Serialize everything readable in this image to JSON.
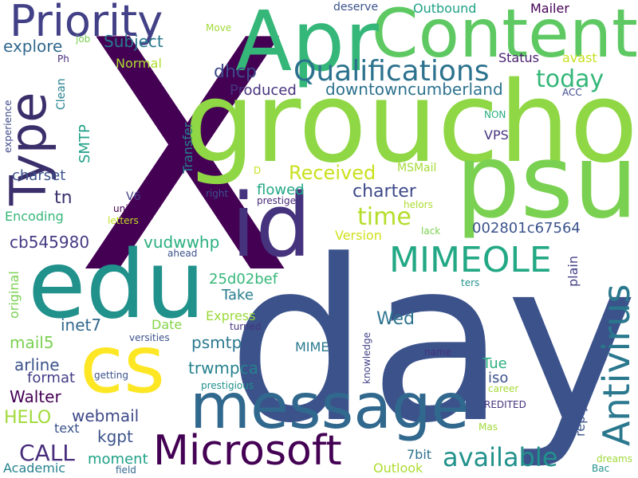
{
  "word_cloud": {
    "words": [
      {
        "text": "X",
        "color": "#440154"
      },
      {
        "text": "day",
        "color": "#3b528b"
      },
      {
        "text": "groucho",
        "color": "#8fd744"
      },
      {
        "text": "psu",
        "color": "#7ad151"
      },
      {
        "text": "edu",
        "color": "#21918c"
      },
      {
        "text": "Content",
        "color": "#5ec962"
      },
      {
        "text": "Apr",
        "color": "#35b779"
      },
      {
        "text": "id",
        "color": "#46337e"
      },
      {
        "text": "message",
        "color": "#31688e"
      },
      {
        "text": "cs",
        "color": "#fde725"
      },
      {
        "text": "Priority",
        "color": "#424086"
      },
      {
        "text": "Type",
        "color": "#3b2f6b"
      },
      {
        "text": "Microsoft",
        "color": "#440154"
      },
      {
        "text": "Antivirus",
        "color": "#2a788e"
      },
      {
        "text": "MIMEOLE",
        "color": "#22a884"
      },
      {
        "text": "Qualifications",
        "color": "#2c728e"
      },
      {
        "text": "today",
        "color": "#35b779"
      },
      {
        "text": "available",
        "color": "#21918c"
      },
      {
        "text": "time",
        "color": "#b5de2b"
      },
      {
        "text": "Received",
        "color": "#cae11f"
      },
      {
        "text": "charter",
        "color": "#3e4989"
      },
      {
        "text": "CALL",
        "color": "#472d7b"
      },
      {
        "text": "Subject",
        "color": "#2a788e"
      },
      {
        "text": "explore",
        "color": "#31688e"
      },
      {
        "text": "dhcp",
        "color": "#3e4989"
      },
      {
        "text": "Produced",
        "color": "#46337e"
      },
      {
        "text": "downtowncumberland",
        "color": "#2c728e"
      },
      {
        "text": "Status",
        "color": "#481f70"
      },
      {
        "text": "Mailer",
        "color": "#440154"
      },
      {
        "text": "Outbound",
        "color": "#1fa187"
      },
      {
        "text": "deserve",
        "color": "#3b528b"
      },
      {
        "text": "Move",
        "color": "#a0da39"
      },
      {
        "text": "job",
        "color": "#7ad151"
      },
      {
        "text": "Ph",
        "color": "#472d7b"
      },
      {
        "text": "Normal",
        "color": "#addc30"
      },
      {
        "text": "avast",
        "color": "#c8e020"
      },
      {
        "text": "ACC",
        "color": "#3e4989"
      },
      {
        "text": "Clean",
        "color": "#26828e"
      },
      {
        "text": "experience",
        "color": "#3e4989"
      },
      {
        "text": "SMTP",
        "color": "#1fa187"
      },
      {
        "text": "Transfer",
        "color": "#26828e"
      },
      {
        "text": "NON",
        "color": "#29af7f"
      },
      {
        "text": "VPS",
        "color": "#46337e"
      },
      {
        "text": "charset",
        "color": "#3b528b"
      },
      {
        "text": "MSMail",
        "color": "#a5db36"
      },
      {
        "text": "D",
        "color": "#cae11f"
      },
      {
        "text": "tn",
        "color": "#3b2f6b"
      },
      {
        "text": "flowed",
        "color": "#22a884"
      },
      {
        "text": "right",
        "color": "#3b528b"
      },
      {
        "text": "prestige",
        "color": "#482878"
      },
      {
        "text": "V6",
        "color": "#433e85"
      },
      {
        "text": "uni",
        "color": "#440154"
      },
      {
        "text": "Encoding",
        "color": "#35b779"
      },
      {
        "text": "letters",
        "color": "#c2df23"
      },
      {
        "text": "helors",
        "color": "#addc30"
      },
      {
        "text": "Version",
        "color": "#d0e11c"
      },
      {
        "text": "lack",
        "color": "#7ad151"
      },
      {
        "text": "002801c67564",
        "color": "#3b528b"
      },
      {
        "text": "cb545980",
        "color": "#443a83"
      },
      {
        "text": "vudwwhp",
        "color": "#29af7f"
      },
      {
        "text": "ahead",
        "color": "#3b528b"
      },
      {
        "text": "plain",
        "color": "#424086"
      },
      {
        "text": "25d02bef",
        "color": "#35b779"
      },
      {
        "text": "original",
        "color": "#7ad151"
      },
      {
        "text": "Take",
        "color": "#287c8e"
      },
      {
        "text": "ters",
        "color": "#21918c"
      },
      {
        "text": "inet7",
        "color": "#31688e"
      },
      {
        "text": "Express",
        "color": "#9bd93c"
      },
      {
        "text": "Wed",
        "color": "#2c728e"
      },
      {
        "text": "Date",
        "color": "#84d44b"
      },
      {
        "text": "turned",
        "color": "#46337e"
      },
      {
        "text": "mail5",
        "color": "#7ad151"
      },
      {
        "text": "versities",
        "color": "#3b528b"
      },
      {
        "text": "psmtp",
        "color": "#2a788e"
      },
      {
        "text": "MIME",
        "color": "#2a788e"
      },
      {
        "text": "knowledge",
        "color": "#424086"
      },
      {
        "text": "name",
        "color": "#46337e"
      },
      {
        "text": "arline",
        "color": "#3b528b"
      },
      {
        "text": "trwmpca",
        "color": "#26828e"
      },
      {
        "text": "Tue",
        "color": "#29af7f"
      },
      {
        "text": "iso",
        "color": "#3b528b"
      },
      {
        "text": "format",
        "color": "#433e85"
      },
      {
        "text": "getting",
        "color": "#3b528b"
      },
      {
        "text": "Walter",
        "color": "#440154"
      },
      {
        "text": "prestigious",
        "color": "#21918c"
      },
      {
        "text": "career",
        "color": "#a5db36"
      },
      {
        "text": "reply",
        "color": "#3b528b"
      },
      {
        "text": "HELO",
        "color": "#a0da39"
      },
      {
        "text": "webmail",
        "color": "#3e4989"
      },
      {
        "text": "REDITED",
        "color": "#46337e"
      },
      {
        "text": "text",
        "color": "#3b528b"
      },
      {
        "text": "kgpt",
        "color": "#3b528b"
      },
      {
        "text": "Mas",
        "color": "#a0da39"
      },
      {
        "text": "7bit",
        "color": "#2c728e"
      },
      {
        "text": "moment",
        "color": "#1fa187"
      },
      {
        "text": "dreams",
        "color": "#a0da39"
      },
      {
        "text": "Academic",
        "color": "#26828e"
      },
      {
        "text": "field",
        "color": "#31688e"
      },
      {
        "text": "Outlook",
        "color": "#addc30"
      },
      {
        "text": "Bac",
        "color": "#21918c"
      }
    ]
  }
}
